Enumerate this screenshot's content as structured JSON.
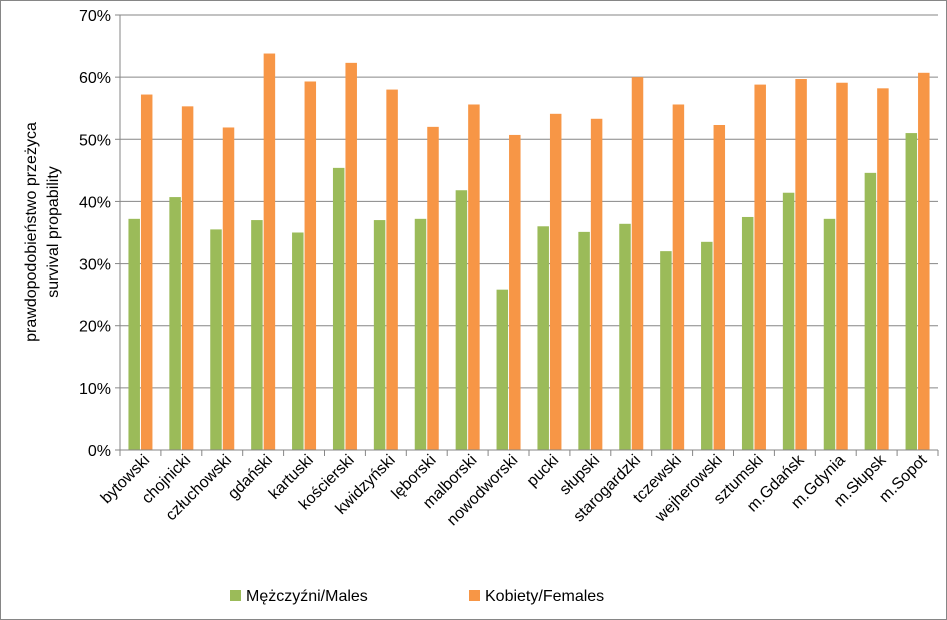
{
  "chart_data": {
    "type": "bar",
    "title": "",
    "xlabel": "",
    "ylabel_lines": [
      "prawdopodobieństwo  przeżyca",
      "survival  propability"
    ],
    "ylim": [
      0,
      0.7
    ],
    "y_ticks": [
      "0%",
      "10%",
      "20%",
      "30%",
      "40%",
      "50%",
      "60%",
      "70%"
    ],
    "y_tick_values": [
      0,
      0.1,
      0.2,
      0.3,
      0.4,
      0.5,
      0.6,
      0.7
    ],
    "grid": "horizontal major",
    "legend_position": "bottom",
    "categories": [
      "bytowski",
      "chojnicki",
      "człuchowski",
      "gdański",
      "kartuski",
      "kościerski",
      "kwidzyński",
      "lęborski",
      "malborski",
      "nowodworski",
      "pucki",
      "słupski",
      "starogardzki",
      "tczewski",
      "wejherowski",
      "sztumski",
      "m.Gdańsk",
      "m.Gdynia",
      "m.Słupsk",
      "m.Sopot"
    ],
    "series": [
      {
        "name": "Mężczyźni/Males",
        "color": "#9BBB59",
        "values": [
          0.372,
          0.407,
          0.355,
          0.37,
          0.35,
          0.454,
          0.37,
          0.372,
          0.418,
          0.258,
          0.36,
          0.351,
          0.364,
          0.32,
          0.335,
          0.375,
          0.414,
          0.372,
          0.446,
          0.51
        ]
      },
      {
        "name": "Kobiety/Females",
        "color": "#F79646",
        "values": [
          0.572,
          0.553,
          0.519,
          0.638,
          0.593,
          0.623,
          0.58,
          0.52,
          0.556,
          0.507,
          0.541,
          0.533,
          0.6,
          0.556,
          0.523,
          0.588,
          0.597,
          0.591,
          0.582,
          0.607
        ]
      }
    ]
  }
}
